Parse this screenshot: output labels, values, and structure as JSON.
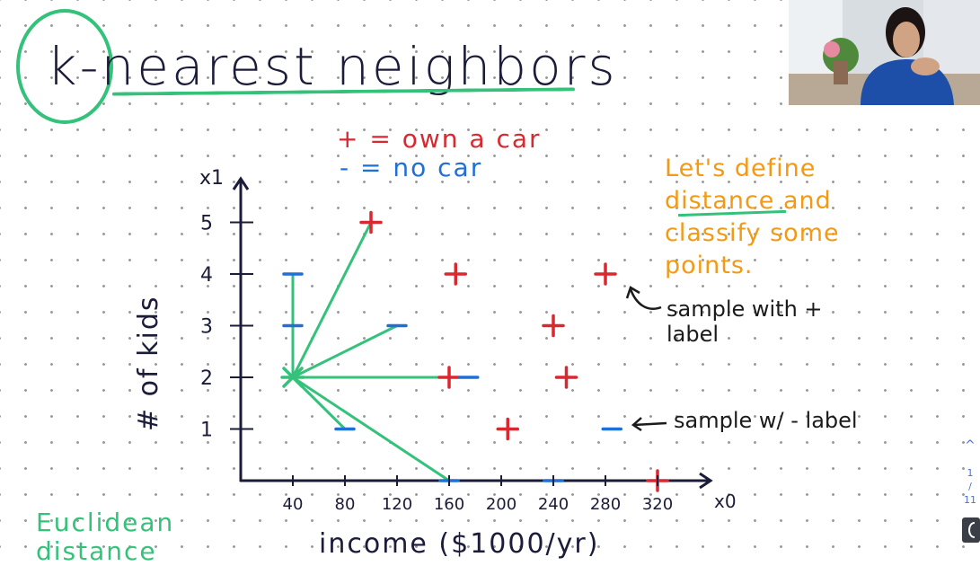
{
  "slide": {
    "title": "k-nearest neighbors",
    "legend_plus": "+ = own a car",
    "legend_minus": "- = no car",
    "note": "Let's define distance and classify some points.",
    "sample_plus_note": "sample with + label",
    "sample_minus_note": "sample w/ - label",
    "bottom_left_note": "Euclidean distance",
    "colors": {
      "plus": "#d9282f",
      "minus": "#1f6fd6",
      "green": "#34c27a",
      "orange": "#f29a16",
      "ink": "#1b1b3a"
    }
  },
  "chart_data": {
    "type": "scatter",
    "xlabel": "income ($1000/yr)",
    "ylabel": "# of kids",
    "x_axis_name": "x0",
    "y_axis_name": "x1",
    "xticks": [
      "40",
      "80",
      "120",
      "160",
      "200",
      "240",
      "280",
      "320"
    ],
    "yticks": [
      "1",
      "2",
      "3",
      "4",
      "5"
    ],
    "xlim": [
      0,
      340
    ],
    "ylim": [
      0,
      5.6
    ],
    "series": [
      {
        "name": "+",
        "points": [
          [
            100,
            5
          ],
          [
            165,
            4
          ],
          [
            280,
            4
          ],
          [
            240,
            3
          ],
          [
            160,
            2
          ],
          [
            250,
            2
          ],
          [
            205,
            1
          ],
          [
            320,
            0
          ]
        ]
      },
      {
        "name": "-",
        "points": [
          [
            40,
            4
          ],
          [
            40,
            3
          ],
          [
            120,
            3
          ],
          [
            175,
            2
          ],
          [
            80,
            1
          ],
          [
            285,
            1
          ],
          [
            160,
            0
          ],
          [
            240,
            0
          ]
        ]
      }
    ],
    "query_point": [
      40,
      2
    ],
    "distance_lines_to": [
      [
        100,
        5
      ],
      [
        40,
        4
      ],
      [
        120,
        3
      ],
      [
        160,
        2
      ],
      [
        80,
        1
      ],
      [
        160,
        0
      ]
    ]
  },
  "webcam": {
    "icon": "presenter-video-icon"
  },
  "pagination": {
    "up": "^",
    "current": "1",
    "sep": "/",
    "total": "11"
  }
}
